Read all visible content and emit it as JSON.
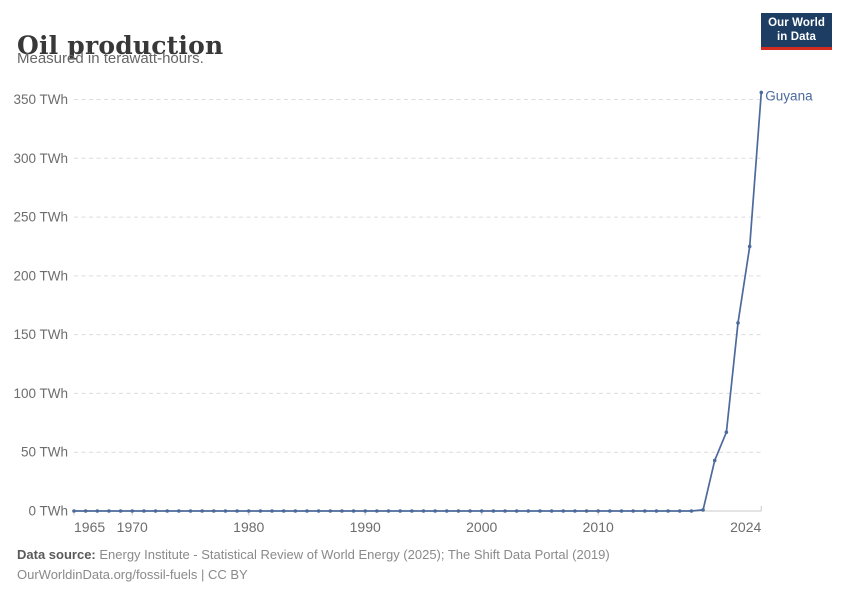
{
  "header": {
    "title": "Oil production",
    "subtitle": "Measured in terawatt-hours."
  },
  "logo": {
    "line1": "Our World",
    "line2": "in Data",
    "bg_color": "#1d3d63",
    "strip_color": "#d42b21"
  },
  "chart_data": {
    "type": "line",
    "title": "Oil production",
    "ylabel": "",
    "xlabel": "",
    "unit": "TWh",
    "xlim": [
      1965,
      2024
    ],
    "ylim": [
      0,
      350
    ],
    "grid": "horizontal-dashed",
    "legend_position": "end-of-line-label",
    "yticks": [
      0,
      50,
      100,
      150,
      200,
      250,
      300,
      350
    ],
    "ytick_suffix": " TWh",
    "xticks": [
      1965,
      1970,
      1980,
      1990,
      2000,
      2010,
      2024
    ],
    "x": [
      1965,
      1966,
      1967,
      1968,
      1969,
      1970,
      1971,
      1972,
      1973,
      1974,
      1975,
      1976,
      1977,
      1978,
      1979,
      1980,
      1981,
      1982,
      1983,
      1984,
      1985,
      1986,
      1987,
      1988,
      1989,
      1990,
      1991,
      1992,
      1993,
      1994,
      1995,
      1996,
      1997,
      1998,
      1999,
      2000,
      2001,
      2002,
      2003,
      2004,
      2005,
      2006,
      2007,
      2008,
      2009,
      2010,
      2011,
      2012,
      2013,
      2014,
      2015,
      2016,
      2017,
      2018,
      2019,
      2020,
      2021,
      2022,
      2023,
      2024
    ],
    "series": [
      {
        "name": "Guyana",
        "color": "#4C6A9C",
        "values": [
          0,
          0,
          0,
          0,
          0,
          0,
          0,
          0,
          0,
          0,
          0,
          0,
          0,
          0,
          0,
          0,
          0,
          0,
          0,
          0,
          0,
          0,
          0,
          0,
          0,
          0,
          0,
          0,
          0,
          0,
          0,
          0,
          0,
          0,
          0,
          0,
          0,
          0,
          0,
          0,
          0,
          0,
          0,
          0,
          0,
          0,
          0,
          0,
          0,
          0,
          0,
          0,
          0,
          0,
          0.9,
          43,
          67,
          160,
          225,
          356
        ]
      }
    ]
  },
  "colors": {
    "line": "#4C6A9C",
    "entity_label": "#4C6A9C",
    "grid": "#dcdcdc",
    "axis": "#c9c9c9",
    "tick_label": "#6d6d6d"
  },
  "footer": {
    "datasource_label": "Data source:",
    "datasource_text": " Energy Institute - Statistical Review of World Energy (2025); The Shift Data Portal (2019)",
    "license_text": "OurWorldinData.org/fossil-fuels | CC BY"
  }
}
